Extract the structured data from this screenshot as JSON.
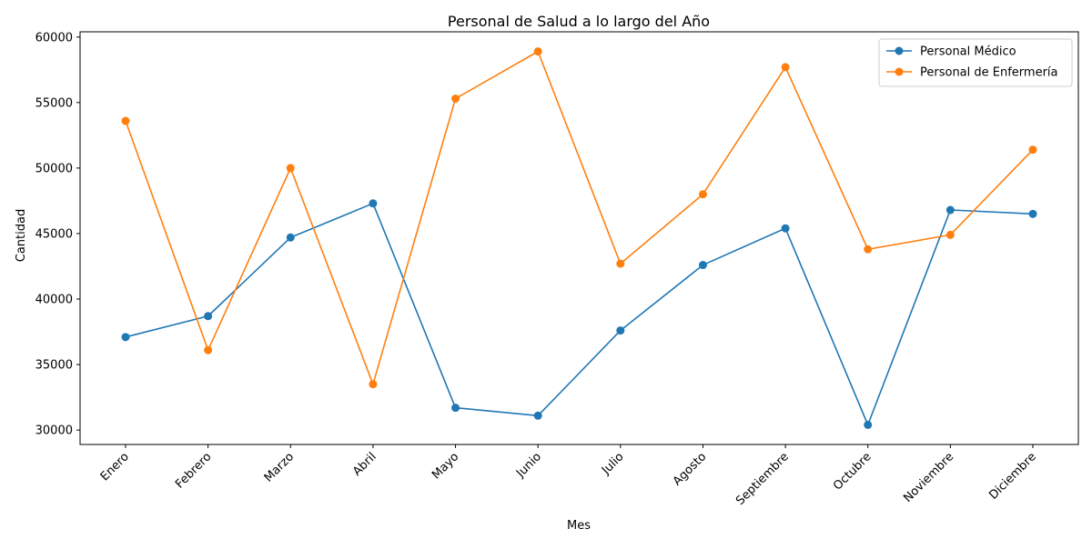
{
  "chart_data": {
    "type": "line",
    "title": "Personal de Salud a lo largo del Año",
    "xlabel": "Mes",
    "ylabel": "Cantidad",
    "categories": [
      "Enero",
      "Febrero",
      "Marzo",
      "Abril",
      "Mayo",
      "Junio",
      "Julio",
      "Agosto",
      "Septiembre",
      "Octubre",
      "Noviembre",
      "Diciembre"
    ],
    "ylim": [
      28900,
      60400
    ],
    "yticks": [
      30000,
      35000,
      40000,
      45000,
      50000,
      55000,
      60000
    ],
    "grid": false,
    "legend_position": "top-right",
    "series": [
      {
        "name": "Personal Médico",
        "color": "#1f77b4",
        "marker": "circle",
        "values": [
          37100,
          38700,
          44700,
          47300,
          31700,
          31100,
          37600,
          42600,
          45400,
          30400,
          46800,
          46500
        ]
      },
      {
        "name": "Personal de Enfermería",
        "color": "#ff7f0e",
        "marker": "circle",
        "values": [
          53600,
          36100,
          50000,
          33500,
          55300,
          58900,
          42700,
          48000,
          57700,
          43800,
          44900,
          51400
        ]
      }
    ]
  }
}
